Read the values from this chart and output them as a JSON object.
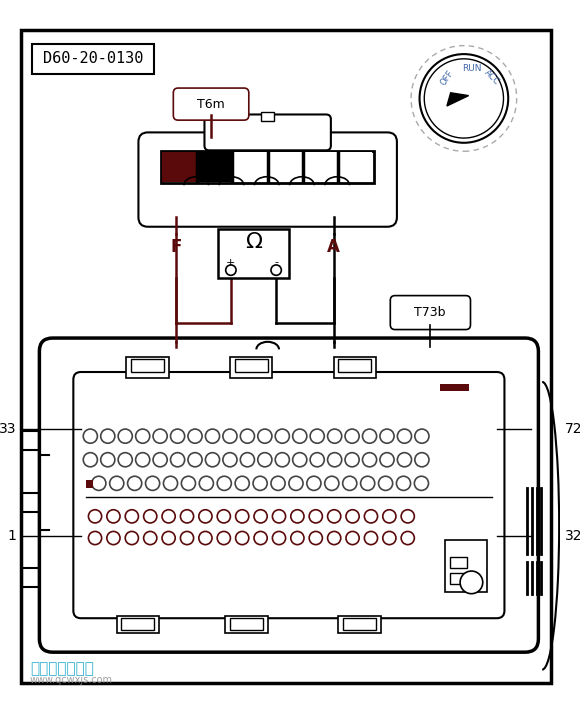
{
  "title": "D60-20-0130",
  "bg_color": "#ffffff",
  "line_color": "#000000",
  "dark_red": "#5a0a0a",
  "blue_text": "#4169aa",
  "watermark": "汽车维修技术网",
  "watermark2": "www.qcwxjs.com",
  "t6m_label": "T6m",
  "t73b_label": "T73b",
  "f_label": "F",
  "a_label": "A",
  "n33_label": "33",
  "n1_label": "1",
  "n72_label": "72",
  "n32_label": "32",
  "off_label": "OFF",
  "run_label": "RUN",
  "acc_label": "ACC"
}
